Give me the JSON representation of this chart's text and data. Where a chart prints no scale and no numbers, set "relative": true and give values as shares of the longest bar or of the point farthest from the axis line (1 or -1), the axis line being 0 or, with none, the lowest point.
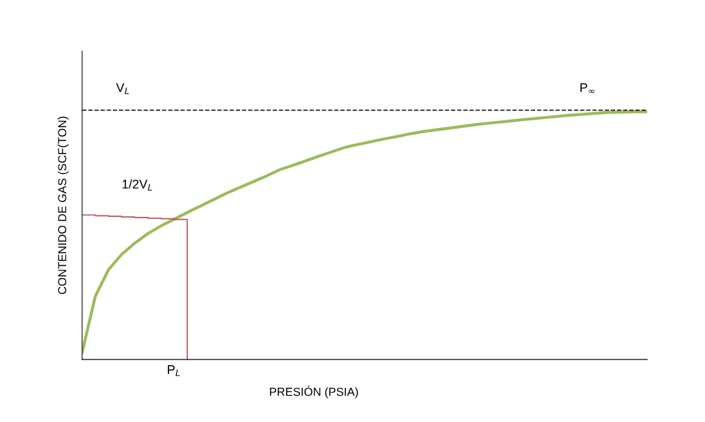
{
  "chart_data": {
    "type": "line",
    "relative": true,
    "xlabel": "PRESIÓN (PSIA)",
    "ylabel": "CONTENIDO DE GAS (SCF(TON)",
    "categories": [
      null,
      null,
      null,
      null,
      null,
      null,
      null,
      null,
      null,
      null,
      null,
      null,
      null,
      null,
      null,
      null,
      null,
      null,
      null,
      null,
      null,
      null,
      null,
      null,
      null,
      null,
      null,
      null,
      null,
      null,
      null,
      null,
      null,
      null,
      null,
      null,
      null,
      null,
      null,
      null,
      null,
      null,
      null,
      null
    ],
    "series": [
      {
        "color": "#9bbb59",
        "values": [
          0.028,
          0.255,
          0.362,
          0.424,
          0.469,
          0.508,
          0.539,
          0.566,
          0.593,
          0.619,
          0.645,
          0.671,
          0.694,
          0.717,
          0.74,
          0.765,
          0.783,
          0.801,
          0.82,
          0.838,
          0.856,
          0.868,
          0.879,
          0.89,
          0.9,
          0.911,
          0.92,
          0.927,
          0.934,
          0.941,
          0.948,
          0.954,
          0.959,
          0.965,
          0.97,
          0.975,
          0.98,
          0.985,
          0.989,
          0.993,
          0.997,
          0.998,
          0.999,
          1
        ]
      },
      {
        "type": "step",
        "color": "#c0504d",
        "values": [
          0.583,
          0.58,
          0.578,
          0.575,
          0.573,
          0.57,
          0.568,
          0.565,
          0,
          null,
          null,
          null,
          null,
          null,
          null,
          null,
          null,
          null,
          null,
          null,
          null,
          null,
          null,
          null,
          null,
          null,
          null,
          null,
          null,
          null,
          null,
          null,
          null,
          null,
          null,
          null,
          null,
          null,
          null,
          null,
          null,
          null,
          null,
          null
        ]
      }
    ],
    "ref_lines": [
      {
        "axis": "y",
        "value": 1.006,
        "label": "V$_{L}$",
        "color": "#000000",
        "line_style": "dashed"
      }
    ],
    "annotations": [
      "1/2V$_{L}$",
      "P$_{L}$",
      "P$_{∞}$"
    ]
  }
}
